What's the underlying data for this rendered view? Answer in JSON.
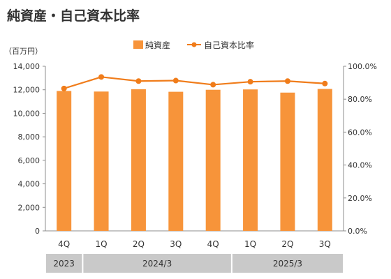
{
  "title": "純資産・自己資本比率",
  "colors": {
    "bar": "#f7943a",
    "line": "#f07c1a",
    "axis": "#8c8c8c",
    "group_bg": "#c9c9c9",
    "text": "#333333"
  },
  "chart_data": {
    "type": "bar",
    "title": "純資産・自己資本比率",
    "unit_label": "（百万円）",
    "categories": [
      "4Q",
      "1Q",
      "2Q",
      "3Q",
      "4Q",
      "1Q",
      "2Q",
      "3Q"
    ],
    "groups": [
      {
        "label": "2023",
        "count": 1
      },
      {
        "label": "2024/3",
        "count": 4
      },
      {
        "label": "2025/3",
        "count": 3
      }
    ],
    "series": [
      {
        "name": "純資産",
        "type": "bar",
        "axis": "left",
        "values": [
          11900,
          11850,
          12050,
          11830,
          12000,
          12030,
          11760,
          12070
        ]
      },
      {
        "name": "自己資本比率",
        "type": "line",
        "axis": "right",
        "values": [
          86.5,
          93.5,
          91.0,
          91.3,
          88.8,
          90.6,
          91.0,
          89.5
        ]
      }
    ],
    "y_left": {
      "min": 0,
      "max": 14000,
      "ticks": [
        "0",
        "2,000",
        "4,000",
        "6,000",
        "8,000",
        "10,000",
        "12,000",
        "14,000"
      ]
    },
    "y_right": {
      "min": 0,
      "max": 100,
      "ticks": [
        "0.0%",
        "20.0%",
        "40.0%",
        "60.0%",
        "80.0%",
        "100.0%"
      ]
    },
    "legend_position": "top",
    "grid": false
  }
}
